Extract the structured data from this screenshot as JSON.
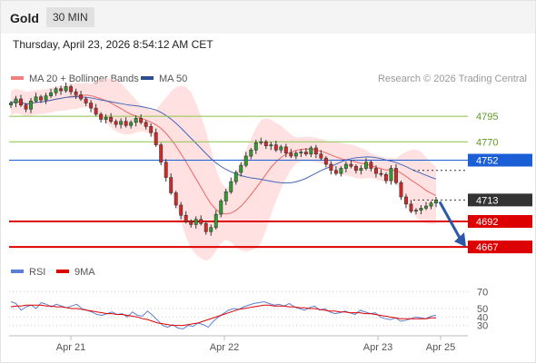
{
  "header": {
    "title": "Gold",
    "timeframe": "30 MIN",
    "datetime": "Thursday, April 23, 2026 8:54:12 AM CET"
  },
  "colors": {
    "up_candle": "#2ca02c",
    "down_candle": "#d62728",
    "bollinger_band": "#ffc8c8",
    "ma20": "#ee6666",
    "ma50": "#4466bb",
    "support_line": "#dd0000",
    "resistance_green": "#8ec44a",
    "ma50_level": "#1a5fd6",
    "current_price_label": "#333333",
    "rsi_line": "#5b7fd6",
    "rsi_ma": "#dd0000",
    "arrow": "#2a59a8"
  },
  "chart_data": [
    {
      "type": "candlestick",
      "title": "Gold",
      "legend": [
        {
          "name": "MA 20 + Bollinger Bands",
          "color": "#f08080"
        },
        {
          "name": "MA 50",
          "color": "#2d4f8f"
        }
      ],
      "watermark": "Research © 2026 Trading Central",
      "x_labels": [
        "Apr 21",
        "Apr 22",
        "Apr 23",
        "Apr 25"
      ],
      "ylim": [
        4660,
        4820
      ],
      "levels": [
        {
          "value": 4795,
          "label": "4795",
          "kind": "resistance"
        },
        {
          "value": 4770,
          "label": "4770",
          "kind": "resistance"
        },
        {
          "value": 4752,
          "label": "4752",
          "kind": "ma50"
        },
        {
          "value": 4713,
          "label": "4713",
          "kind": "current"
        },
        {
          "value": 4692,
          "label": "4692",
          "kind": "support"
        },
        {
          "value": 4667,
          "label": "4667",
          "kind": "support"
        }
      ],
      "close_series": [
        4808,
        4812,
        4806,
        4802,
        4810,
        4814,
        4811,
        4815,
        4818,
        4822,
        4820,
        4824,
        4819,
        4816,
        4812,
        4808,
        4803,
        4797,
        4792,
        4794,
        4790,
        4787,
        4790,
        4786,
        4789,
        4793,
        4789,
        4785,
        4779,
        4767,
        4750,
        4735,
        4720,
        4708,
        4698,
        4692,
        4689,
        4694,
        4690,
        4682,
        4686,
        4699,
        4712,
        4721,
        4731,
        4740,
        4747,
        4756,
        4762,
        4769,
        4770,
        4766,
        4767,
        4762,
        4765,
        4759,
        4756,
        4759,
        4760,
        4758,
        4764,
        4758,
        4754,
        4748,
        4742,
        4739,
        4744,
        4748,
        4746,
        4742,
        4744,
        4750,
        4744,
        4739,
        4738,
        4732,
        4744,
        4730,
        4716,
        4709,
        4702,
        4703,
        4705,
        4707,
        4710,
        4713
      ],
      "forecast": {
        "from": 4713,
        "to": 4667
      }
    },
    {
      "type": "line",
      "title": "RSI",
      "legend": [
        {
          "name": "RSI",
          "color": "#5b7fd6"
        },
        {
          "name": "9MA",
          "color": "#dd0000"
        }
      ],
      "ylim": [
        20,
        80
      ],
      "y_ticks": [
        "70",
        "50",
        "40",
        "30"
      ],
      "series": [
        {
          "name": "RSI",
          "values": [
            58,
            56,
            48,
            52,
            54,
            50,
            57,
            55,
            52,
            55,
            53,
            51,
            53,
            55,
            50,
            48,
            46,
            43,
            42,
            44,
            46,
            43,
            44,
            40,
            46,
            42,
            41,
            47,
            42,
            36,
            30,
            28,
            31,
            27,
            26,
            30,
            29,
            33,
            31,
            28,
            35,
            40,
            44,
            48,
            50,
            49,
            52,
            54,
            56,
            57,
            58,
            56,
            54,
            55,
            53,
            56,
            52,
            50,
            48,
            51,
            53,
            48,
            50,
            46,
            44,
            45,
            47,
            45,
            43,
            48,
            46,
            44,
            45,
            40,
            38,
            37,
            39,
            35,
            36,
            38,
            40,
            39,
            38,
            41,
            42
          ]
        },
        {
          "name": "9MA",
          "values": [
            52,
            53,
            53,
            54,
            54,
            54,
            54,
            53,
            53,
            52,
            52,
            51,
            50,
            50,
            49,
            48,
            47,
            46,
            45,
            44,
            44,
            43,
            43,
            42,
            41,
            40,
            38,
            37,
            35,
            33,
            32,
            31,
            30,
            30,
            30,
            31,
            32,
            33,
            35,
            37,
            39,
            41,
            43,
            45,
            47,
            49,
            50,
            51,
            52,
            53,
            54,
            54,
            53,
            53,
            53,
            52,
            52,
            51,
            51,
            50,
            50,
            49,
            48,
            47,
            47,
            46,
            46,
            45,
            45,
            45,
            44,
            44,
            43,
            42,
            41,
            40,
            39,
            38,
            38,
            38,
            38,
            38,
            38,
            39,
            39
          ]
        }
      ]
    }
  ]
}
